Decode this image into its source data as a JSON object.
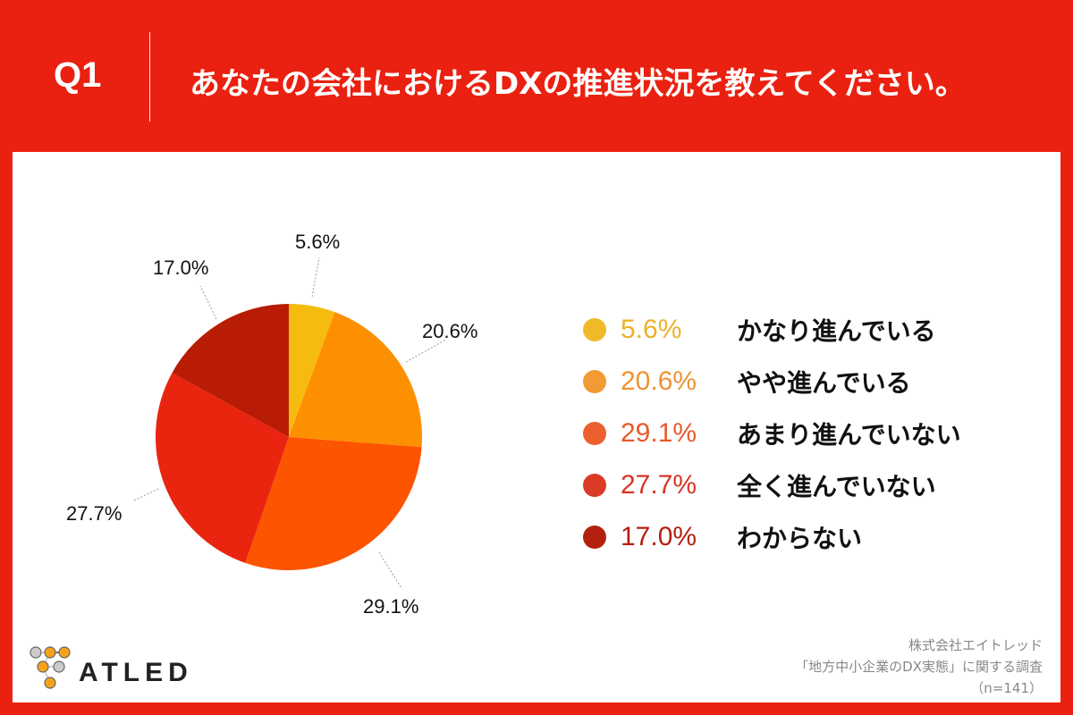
{
  "header": {
    "question_number": "Q1",
    "title": "あなたの会社におけるDXの推進状況を教えてください。"
  },
  "colors": {
    "background_red": "#ea2110",
    "panel": "#ffffff"
  },
  "chart_data": {
    "type": "pie",
    "title": "あなたの会社におけるDXの推進状況を教えてください。",
    "categories": [
      "かなり進んでいる",
      "やや進んでいる",
      "あまり進んでいない",
      "全く進んでいない",
      "わからない"
    ],
    "values": [
      5.6,
      20.6,
      29.1,
      27.7,
      17.0
    ],
    "unit": "%",
    "slice_colors": [
      "#f5bc0f",
      "#fd9000",
      "#fd5400",
      "#e9240f",
      "#b81c04"
    ],
    "start_angle": "12 o'clock, clockwise",
    "legend_position": "right",
    "sample_size": "n=141"
  },
  "pie_labels": [
    "5.6%",
    "20.6%",
    "29.1%",
    "27.7%",
    "17.0%"
  ],
  "legend": [
    {
      "pct": "5.6%",
      "label": "かなり進んでいる",
      "dot_color": "#f0b929",
      "text_color": "#ecb12a"
    },
    {
      "pct": "20.6%",
      "label": "やや進んでいる",
      "dot_color": "#f29a33",
      "text_color": "#ef9232"
    },
    {
      "pct": "29.1%",
      "label": "あまり進んでいない",
      "dot_color": "#ec5f2e",
      "text_color": "#e85a2c"
    },
    {
      "pct": "27.7%",
      "label": "全く進んでいない",
      "dot_color": "#da3a26",
      "text_color": "#d63526"
    },
    {
      "pct": "17.0%",
      "label": "わからない",
      "dot_color": "#b5200e",
      "text_color": "#b3200f"
    }
  ],
  "footer": {
    "logo_text": "ATLED",
    "source_line1": "株式会社エイトレッド",
    "source_line2": "「地方中小企業のDX実態」に関する調査",
    "source_line3": "（n=141）"
  }
}
